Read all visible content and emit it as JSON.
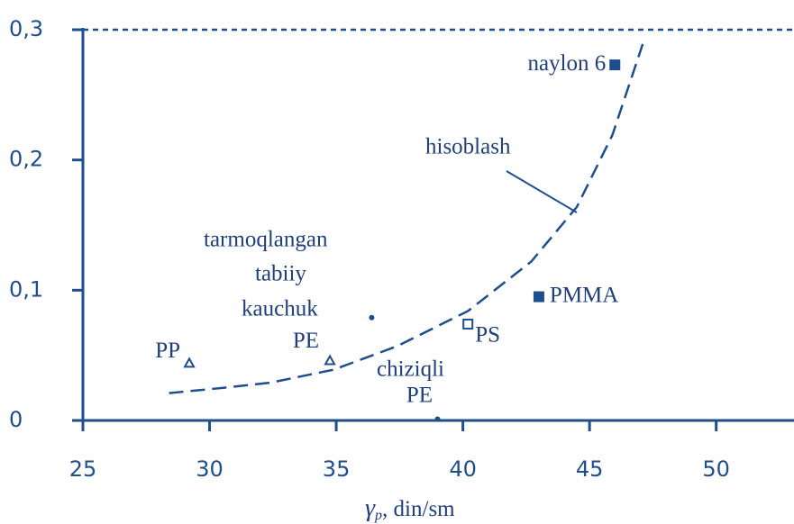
{
  "chart_data": {
    "type": "scatter",
    "xlim": [
      25,
      53
    ],
    "ylim": [
      0,
      0.3
    ],
    "xticks": [
      25,
      30,
      35,
      40,
      45,
      50
    ],
    "yticks": [
      0,
      {
        "value": 0.1,
        "label": "0,1"
      },
      {
        "value": 0.2,
        "label": "0,2"
      },
      {
        "value": 0.3,
        "label": "0,3"
      }
    ],
    "xlabel": {
      "symbol": "γ",
      "subscript": "p",
      "unit": ", din/sm"
    },
    "color": "#1f4e8c",
    "curve": {
      "name": "hisoblash",
      "x": [
        28.4,
        30.5,
        32.4,
        34.9,
        37.4,
        40.2,
        42.7,
        44.5,
        45.9,
        47.1
      ],
      "y": [
        0.021,
        0.025,
        0.029,
        0.039,
        0.057,
        0.084,
        0.122,
        0.164,
        0.219,
        0.289
      ]
    },
    "points": [
      {
        "label": "naylon 6",
        "x": 46,
        "y": 0.273,
        "marker": "filled-square"
      },
      {
        "label": "PMMA",
        "x": 43,
        "y": 0.095,
        "marker": "filled-square"
      },
      {
        "label": "PS",
        "x": 40.2,
        "y": 0.074,
        "marker": "open-square"
      },
      {
        "label": "PP",
        "x": 29.2,
        "y": 0.044,
        "marker": "open-triangle"
      },
      {
        "label": "PE",
        "x": 34.75,
        "y": 0.046,
        "marker": "open-triangle"
      },
      {
        "label": "PE",
        "x": 39,
        "y": 0.001,
        "marker": "dot"
      },
      {
        "x": 36.4,
        "y": 0.079,
        "marker": "dot"
      }
    ],
    "annotations": [
      "tarmoqlangan",
      "tabiiy",
      "kauchuk",
      "chiziqli"
    ]
  }
}
